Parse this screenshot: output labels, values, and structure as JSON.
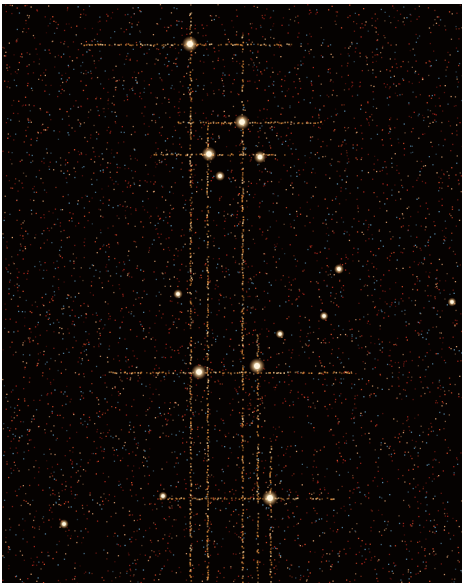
{
  "image": {
    "kind": "astronomical-detector-frame",
    "background_color": "#050201",
    "border_color": "#ffffff",
    "noise_colors": [
      "#b3261e",
      "#d94a2a",
      "#7a1a14",
      "#e0a070",
      "#5a8fb0"
    ],
    "streak_color": "#d8873a",
    "source_color": "#fff6e0",
    "sources": [
      {
        "name": "source-1",
        "brightness": 1.0
      },
      {
        "name": "source-2",
        "brightness": 0.95
      },
      {
        "name": "source-3",
        "brightness": 0.9
      },
      {
        "name": "source-4",
        "brightness": 0.7
      },
      {
        "name": "source-5",
        "brightness": 0.95
      },
      {
        "name": "source-6",
        "brightness": 1.0
      },
      {
        "name": "source-7",
        "brightness": 1.0
      },
      {
        "name": "source-8",
        "brightness": 0.5
      },
      {
        "name": "source-9",
        "brightness": 0.5
      },
      {
        "name": "source-10",
        "brightness": 0.45
      },
      {
        "name": "source-11",
        "brightness": 0.4
      },
      {
        "name": "source-12",
        "brightness": 0.4
      },
      {
        "name": "source-13",
        "brightness": 0.45
      },
      {
        "name": "source-14",
        "brightness": 0.4
      },
      {
        "name": "source-15",
        "brightness": 0.4
      }
    ]
  }
}
